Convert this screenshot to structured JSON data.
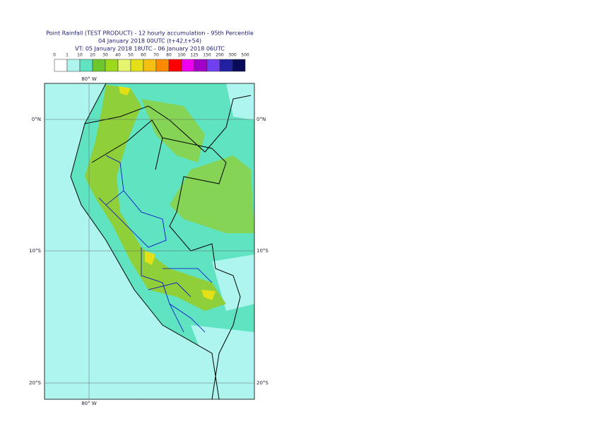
{
  "header": {
    "title": "Point Rainfall (TEST PRODUCT) - 12 hourly accumulation - 95th Percentile",
    "line2": "04 January 2018 00UTC (t+42,t+54)",
    "line3": "VT: 05 January 2018 18UTC - 06 January 2018 06UTC"
  },
  "legend": {
    "levels": [
      0,
      1,
      10,
      20,
      30,
      40,
      50,
      60,
      70,
      80,
      100,
      125,
      150,
      200,
      300,
      500
    ],
    "colors": [
      "#ffffff",
      "#aef5f0",
      "#5fe3c0",
      "#6fc72e",
      "#9bd91a",
      "#e6f56e",
      "#e3e018",
      "#f5c012",
      "#ff8a00",
      "#ff0000",
      "#f000f0",
      "#a000c8",
      "#7040f0",
      "#2020a0",
      "#0a0a5a"
    ]
  },
  "map": {
    "lon_label": "80° W",
    "lat_labels": [
      "0°N",
      "10°S",
      "20°S"
    ]
  }
}
